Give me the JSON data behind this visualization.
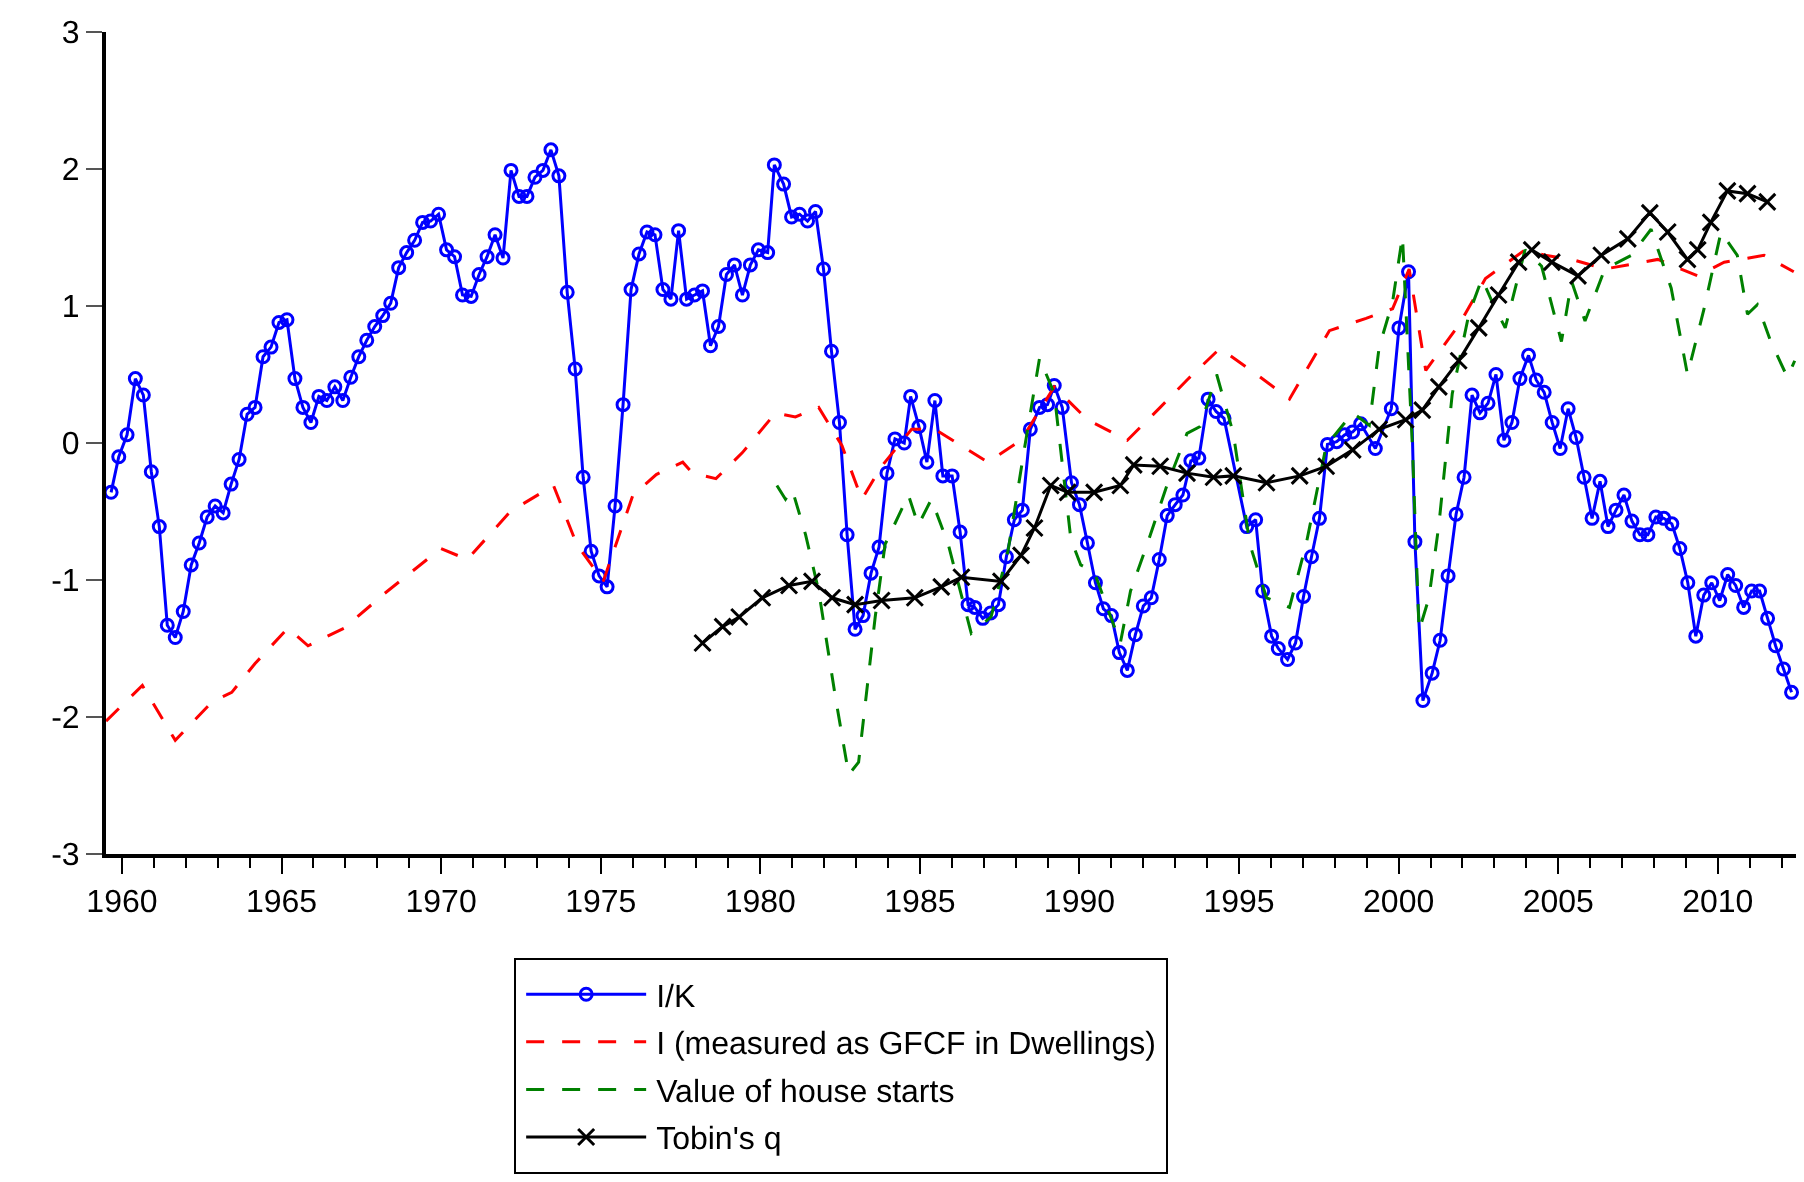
{
  "chart_data": {
    "type": "line",
    "xlim": [
      1959.5,
      2012.45
    ],
    "xticks": [
      1960,
      1965,
      1970,
      1975,
      1980,
      1985,
      1990,
      1995,
      2000,
      2005,
      2010
    ],
    "ylim": [
      -3,
      3
    ],
    "yticks": [
      -3,
      -2,
      -1,
      0,
      1,
      2,
      3
    ],
    "grid": false,
    "legend": "bottom",
    "series": [
      {
        "name": "I/K",
        "color": "#0000ff",
        "marker": "circle",
        "line_style": "solid",
        "x": [
          1959.66,
          1959.9,
          1960.16,
          1960.42,
          1960.67,
          1960.92,
          1961.17,
          1961.42,
          1961.67,
          1961.92,
          1962.17,
          1962.42,
          1962.67,
          1962.92,
          1963.17,
          1963.42,
          1963.67,
          1963.92,
          1964.17,
          1964.42,
          1964.67,
          1964.92,
          1965.17,
          1965.42,
          1965.67,
          1965.92,
          1966.17,
          1966.42,
          1966.67,
          1966.92,
          1967.17,
          1967.42,
          1967.67,
          1967.92,
          1968.17,
          1968.42,
          1968.67,
          1968.92,
          1969.17,
          1969.42,
          1969.67,
          1969.92,
          1970.17,
          1970.42,
          1970.67,
          1970.94,
          1971.19,
          1971.44,
          1971.69,
          1971.94,
          1972.19,
          1972.44,
          1972.69,
          1972.94,
          1973.19,
          1973.44,
          1973.69,
          1973.95,
          1974.2,
          1974.45,
          1974.7,
          1974.95,
          1975.2,
          1975.45,
          1975.7,
          1975.95,
          1976.2,
          1976.45,
          1976.7,
          1976.95,
          1977.2,
          1977.44,
          1977.69,
          1977.94,
          1978.19,
          1978.44,
          1978.69,
          1978.94,
          1979.19,
          1979.44,
          1979.69,
          1979.94,
          1980.23,
          1980.44,
          1980.73,
          1980.98,
          1981.23,
          1981.48,
          1981.73,
          1981.98,
          1982.23,
          1982.48,
          1982.72,
          1982.97,
          1983.22,
          1983.47,
          1983.72,
          1983.97,
          1984.22,
          1984.51,
          1984.71,
          1984.97,
          1985.22,
          1985.47,
          1985.72,
          1986.01,
          1986.26,
          1986.51,
          1986.72,
          1986.97,
          1987.22,
          1987.46,
          1987.71,
          1987.96,
          1988.21,
          1988.46,
          1988.75,
          1989.0,
          1989.21,
          1989.46,
          1989.75,
          1990.0,
          1990.25,
          1990.5,
          1990.75,
          1991.0,
          1991.25,
          1991.5,
          1991.75,
          1992.0,
          1992.25,
          1992.5,
          1992.75,
          1993.0,
          1993.24,
          1993.49,
          1993.74,
          1994.03,
          1994.28,
          1994.53,
          1995.24,
          1995.52,
          1995.74,
          1996.02,
          1996.23,
          1996.52,
          1996.77,
          1997.02,
          1997.27,
          1997.52,
          1997.77,
          1998.06,
          1998.31,
          1998.56,
          1998.81,
          1999.27,
          1999.77,
          2000.01,
          2000.31,
          2000.51,
          2000.76,
          2001.05,
          2001.3,
          2001.55,
          2001.8,
          2002.05,
          2002.3,
          2002.55,
          2002.8,
          2003.05,
          2003.3,
          2003.55,
          2003.8,
          2004.07,
          2004.31,
          2004.56,
          2004.81,
          2005.06,
          2005.31,
          2005.56,
          2005.81,
          2006.06,
          2006.31,
          2006.56,
          2006.81,
          2007.06,
          2007.31,
          2007.56,
          2007.81,
          2008.06,
          2008.31,
          2008.56,
          2008.81,
          2009.06,
          2009.31,
          2009.56,
          2009.81,
          2010.06,
          2010.31,
          2010.56,
          2010.81,
          2011.06,
          2011.31,
          2011.56,
          2011.81,
          2012.06,
          2012.31
        ],
        "values": [
          -0.36,
          -0.1,
          0.06,
          0.47,
          0.35,
          -0.21,
          -0.61,
          -1.33,
          -1.42,
          -1.23,
          -0.89,
          -0.73,
          -0.54,
          -0.46,
          -0.51,
          -0.3,
          -0.12,
          0.21,
          0.26,
          0.63,
          0.7,
          0.88,
          0.9,
          0.47,
          0.26,
          0.15,
          0.34,
          0.31,
          0.41,
          0.31,
          0.48,
          0.63,
          0.75,
          0.85,
          0.93,
          1.02,
          1.28,
          1.39,
          1.48,
          1.61,
          1.62,
          1.67,
          1.41,
          1.36,
          1.08,
          1.07,
          1.23,
          1.36,
          1.52,
          1.35,
          1.99,
          1.8,
          1.8,
          1.94,
          1.99,
          2.14,
          1.95,
          1.1,
          0.54,
          -0.25,
          -0.79,
          -0.97,
          -1.05,
          -0.46,
          0.28,
          1.12,
          1.38,
          1.54,
          1.52,
          1.12,
          1.05,
          1.55,
          1.05,
          1.08,
          1.11,
          0.71,
          0.85,
          1.23,
          1.3,
          1.08,
          1.3,
          1.41,
          1.39,
          2.03,
          1.89,
          1.65,
          1.67,
          1.62,
          1.69,
          1.27,
          0.67,
          0.15,
          -0.67,
          -1.36,
          -1.26,
          -0.95,
          -0.76,
          -0.22,
          0.03,
          0.0,
          0.34,
          0.12,
          -0.14,
          0.31,
          -0.24,
          -0.24,
          -0.65,
          -1.18,
          -1.2,
          -1.28,
          -1.24,
          -1.18,
          -0.83,
          -0.56,
          -0.49,
          0.1,
          0.26,
          0.28,
          0.42,
          0.26,
          -0.29,
          -0.45,
          -0.73,
          -1.02,
          -1.21,
          -1.26,
          -1.53,
          -1.66,
          -1.4,
          -1.19,
          -1.13,
          -0.85,
          -0.53,
          -0.45,
          -0.38,
          -0.13,
          -0.11,
          0.32,
          0.23,
          0.18,
          -0.61,
          -0.56,
          -1.08,
          -1.41,
          -1.5,
          -1.58,
          -1.46,
          -1.12,
          -0.83,
          -0.55,
          -0.01,
          0.01,
          0.06,
          0.08,
          0.14,
          -0.04,
          0.25,
          0.84,
          1.25,
          -0.72,
          -1.88,
          -1.68,
          -1.44,
          -0.97,
          -0.52,
          -0.25,
          0.35,
          0.22,
          0.29,
          0.5,
          0.02,
          0.15,
          0.47,
          0.64,
          0.46,
          0.37,
          0.15,
          -0.04,
          0.25,
          0.04,
          -0.25,
          -0.55,
          -0.28,
          -0.61,
          -0.49,
          -0.38,
          -0.57,
          -0.67,
          -0.67,
          -0.54,
          -0.55,
          -0.59,
          -0.77,
          -1.02,
          -1.41,
          -1.11,
          -1.02,
          -1.15,
          -0.96,
          -1.04,
          -1.2,
          -1.08,
          -1.08,
          -1.28,
          -1.48,
          -1.65,
          -1.82
        ]
      },
      {
        "name": "I (measured as GFCF in Dwellings)",
        "color": "#ff0000",
        "marker": "none",
        "line_style": "dashed",
        "x": [
          1959.5,
          1960.64,
          1961.67,
          1962.82,
          1963.44,
          1964.17,
          1965.2,
          1965.83,
          1966.97,
          1968.22,
          1969.99,
          1970.82,
          1972.17,
          1973.52,
          1974.25,
          1975.08,
          1976.01,
          1976.74,
          1977.57,
          1977.88,
          1978.61,
          1979.44,
          1980.48,
          1981.1,
          1981.83,
          1982.56,
          1983.18,
          1983.8,
          1984.74,
          1985.47,
          1986.3,
          1987.13,
          1988.17,
          1989.21,
          1990.25,
          1991.5,
          1992.53,
          1993.37,
          1994.4,
          1995.44,
          1996.58,
          1997.83,
          1998.98,
          1999.81,
          2000.33,
          2000.85,
          2001.88,
          2002.72,
          2003.13,
          2003.96,
          2004.59,
          2005.42,
          2006.46,
          2008.12,
          2009.37,
          2010.2,
          2011.45,
          2012.38
        ],
        "values": [
          -2.03,
          -1.77,
          -2.17,
          -1.89,
          -1.82,
          -1.61,
          -1.35,
          -1.48,
          -1.35,
          -1.1,
          -0.77,
          -0.85,
          -0.5,
          -0.31,
          -0.74,
          -1.01,
          -0.38,
          -0.23,
          -0.14,
          -0.22,
          -0.26,
          -0.07,
          0.22,
          0.19,
          0.26,
          -0.02,
          -0.41,
          -0.17,
          0.1,
          0.1,
          -0.02,
          -0.14,
          0.02,
          0.41,
          0.17,
          0.02,
          0.26,
          0.46,
          0.69,
          0.52,
          0.32,
          0.82,
          0.91,
          0.98,
          1.27,
          0.53,
          0.86,
          1.2,
          1.27,
          1.41,
          1.37,
          1.34,
          1.27,
          1.34,
          1.22,
          1.32,
          1.37,
          1.25
        ]
      },
      {
        "name": "Value of house starts",
        "color": "#008000",
        "marker": "none",
        "line_style": "dashed",
        "x": [
          1980.52,
          1980.79,
          1981.0,
          1981.42,
          1981.83,
          1982.35,
          1982.77,
          1983.08,
          1983.6,
          1983.91,
          1984.64,
          1984.95,
          1985.36,
          1985.89,
          1986.61,
          1987.23,
          1987.76,
          1988.27,
          1988.75,
          1989.21,
          1989.73,
          1990.04,
          1990.46,
          1991.28,
          1991.6,
          1992.12,
          1992.74,
          1993.37,
          1993.78,
          1994.3,
          1994.82,
          1995.34,
          1995.86,
          1996.58,
          1997.1,
          1997.73,
          1998.56,
          1999.08,
          1999.39,
          1999.81,
          2000.12,
          2000.43,
          2000.64,
          2000.95,
          2001.26,
          2001.68,
          2002.2,
          2002.61,
          2002.93,
          2003.34,
          2003.96,
          2004.48,
          2005.1,
          2005.42,
          2005.84,
          2006.46,
          2007.29,
          2007.91,
          2008.54,
          2009.05,
          2009.57,
          2010.1,
          2010.61,
          2010.93,
          2011.24,
          2011.66,
          2012.18,
          2012.41
        ],
        "values": [
          -0.31,
          -0.41,
          -0.34,
          -0.67,
          -1.08,
          -1.85,
          -2.42,
          -2.33,
          -1.27,
          -0.74,
          -0.38,
          -0.6,
          -0.41,
          -0.74,
          -1.39,
          -1.27,
          -0.79,
          -0.05,
          0.62,
          0.36,
          -0.7,
          -0.89,
          -0.94,
          -1.46,
          -1.08,
          -0.74,
          -0.31,
          0.07,
          0.12,
          0.5,
          0.07,
          -0.74,
          -1.13,
          -1.2,
          -0.74,
          -0.02,
          0.22,
          0.13,
          0.7,
          1.03,
          1.51,
          -0.02,
          -1.37,
          -1.13,
          -0.6,
          0.36,
          0.94,
          1.2,
          1.03,
          0.84,
          1.41,
          1.29,
          0.74,
          1.18,
          0.89,
          1.27,
          1.37,
          1.56,
          1.13,
          0.5,
          0.98,
          1.54,
          1.37,
          0.94,
          1.01,
          0.74,
          0.48,
          0.6
        ]
      },
      {
        "name": "Tobin's q",
        "color": "#000000",
        "marker": "cross",
        "line_style": "solid",
        "x": [
          1978.19,
          1978.82,
          1979.34,
          1980.06,
          1980.9,
          1981.62,
          1982.25,
          1982.97,
          1983.8,
          1984.84,
          1985.67,
          1986.3,
          1987.54,
          1988.17,
          1988.59,
          1989.1,
          1989.63,
          1990.46,
          1991.28,
          1991.7,
          1992.53,
          1993.37,
          1994.2,
          1994.82,
          1995.86,
          1996.9,
          1997.73,
          1998.56,
          1999.39,
          2000.22,
          2000.74,
          2001.26,
          2001.88,
          2002.51,
          2003.13,
          2003.76,
          2004.17,
          2004.8,
          2005.62,
          2006.35,
          2007.18,
          2007.87,
          2008.43,
          2009.05,
          2009.37,
          2009.78,
          2010.3,
          2010.93,
          2011.55
        ],
        "values": [
          -1.46,
          -1.34,
          -1.27,
          -1.13,
          -1.04,
          -1.01,
          -1.13,
          -1.18,
          -1.15,
          -1.13,
          -1.05,
          -0.98,
          -1.01,
          -0.82,
          -0.62,
          -0.31,
          -0.36,
          -0.36,
          -0.31,
          -0.16,
          -0.17,
          -0.22,
          -0.25,
          -0.24,
          -0.29,
          -0.24,
          -0.17,
          -0.05,
          0.1,
          0.17,
          0.24,
          0.41,
          0.6,
          0.84,
          1.08,
          1.32,
          1.41,
          1.32,
          1.22,
          1.37,
          1.49,
          1.68,
          1.54,
          1.34,
          1.41,
          1.61,
          1.84,
          1.82,
          1.76
        ]
      }
    ]
  }
}
